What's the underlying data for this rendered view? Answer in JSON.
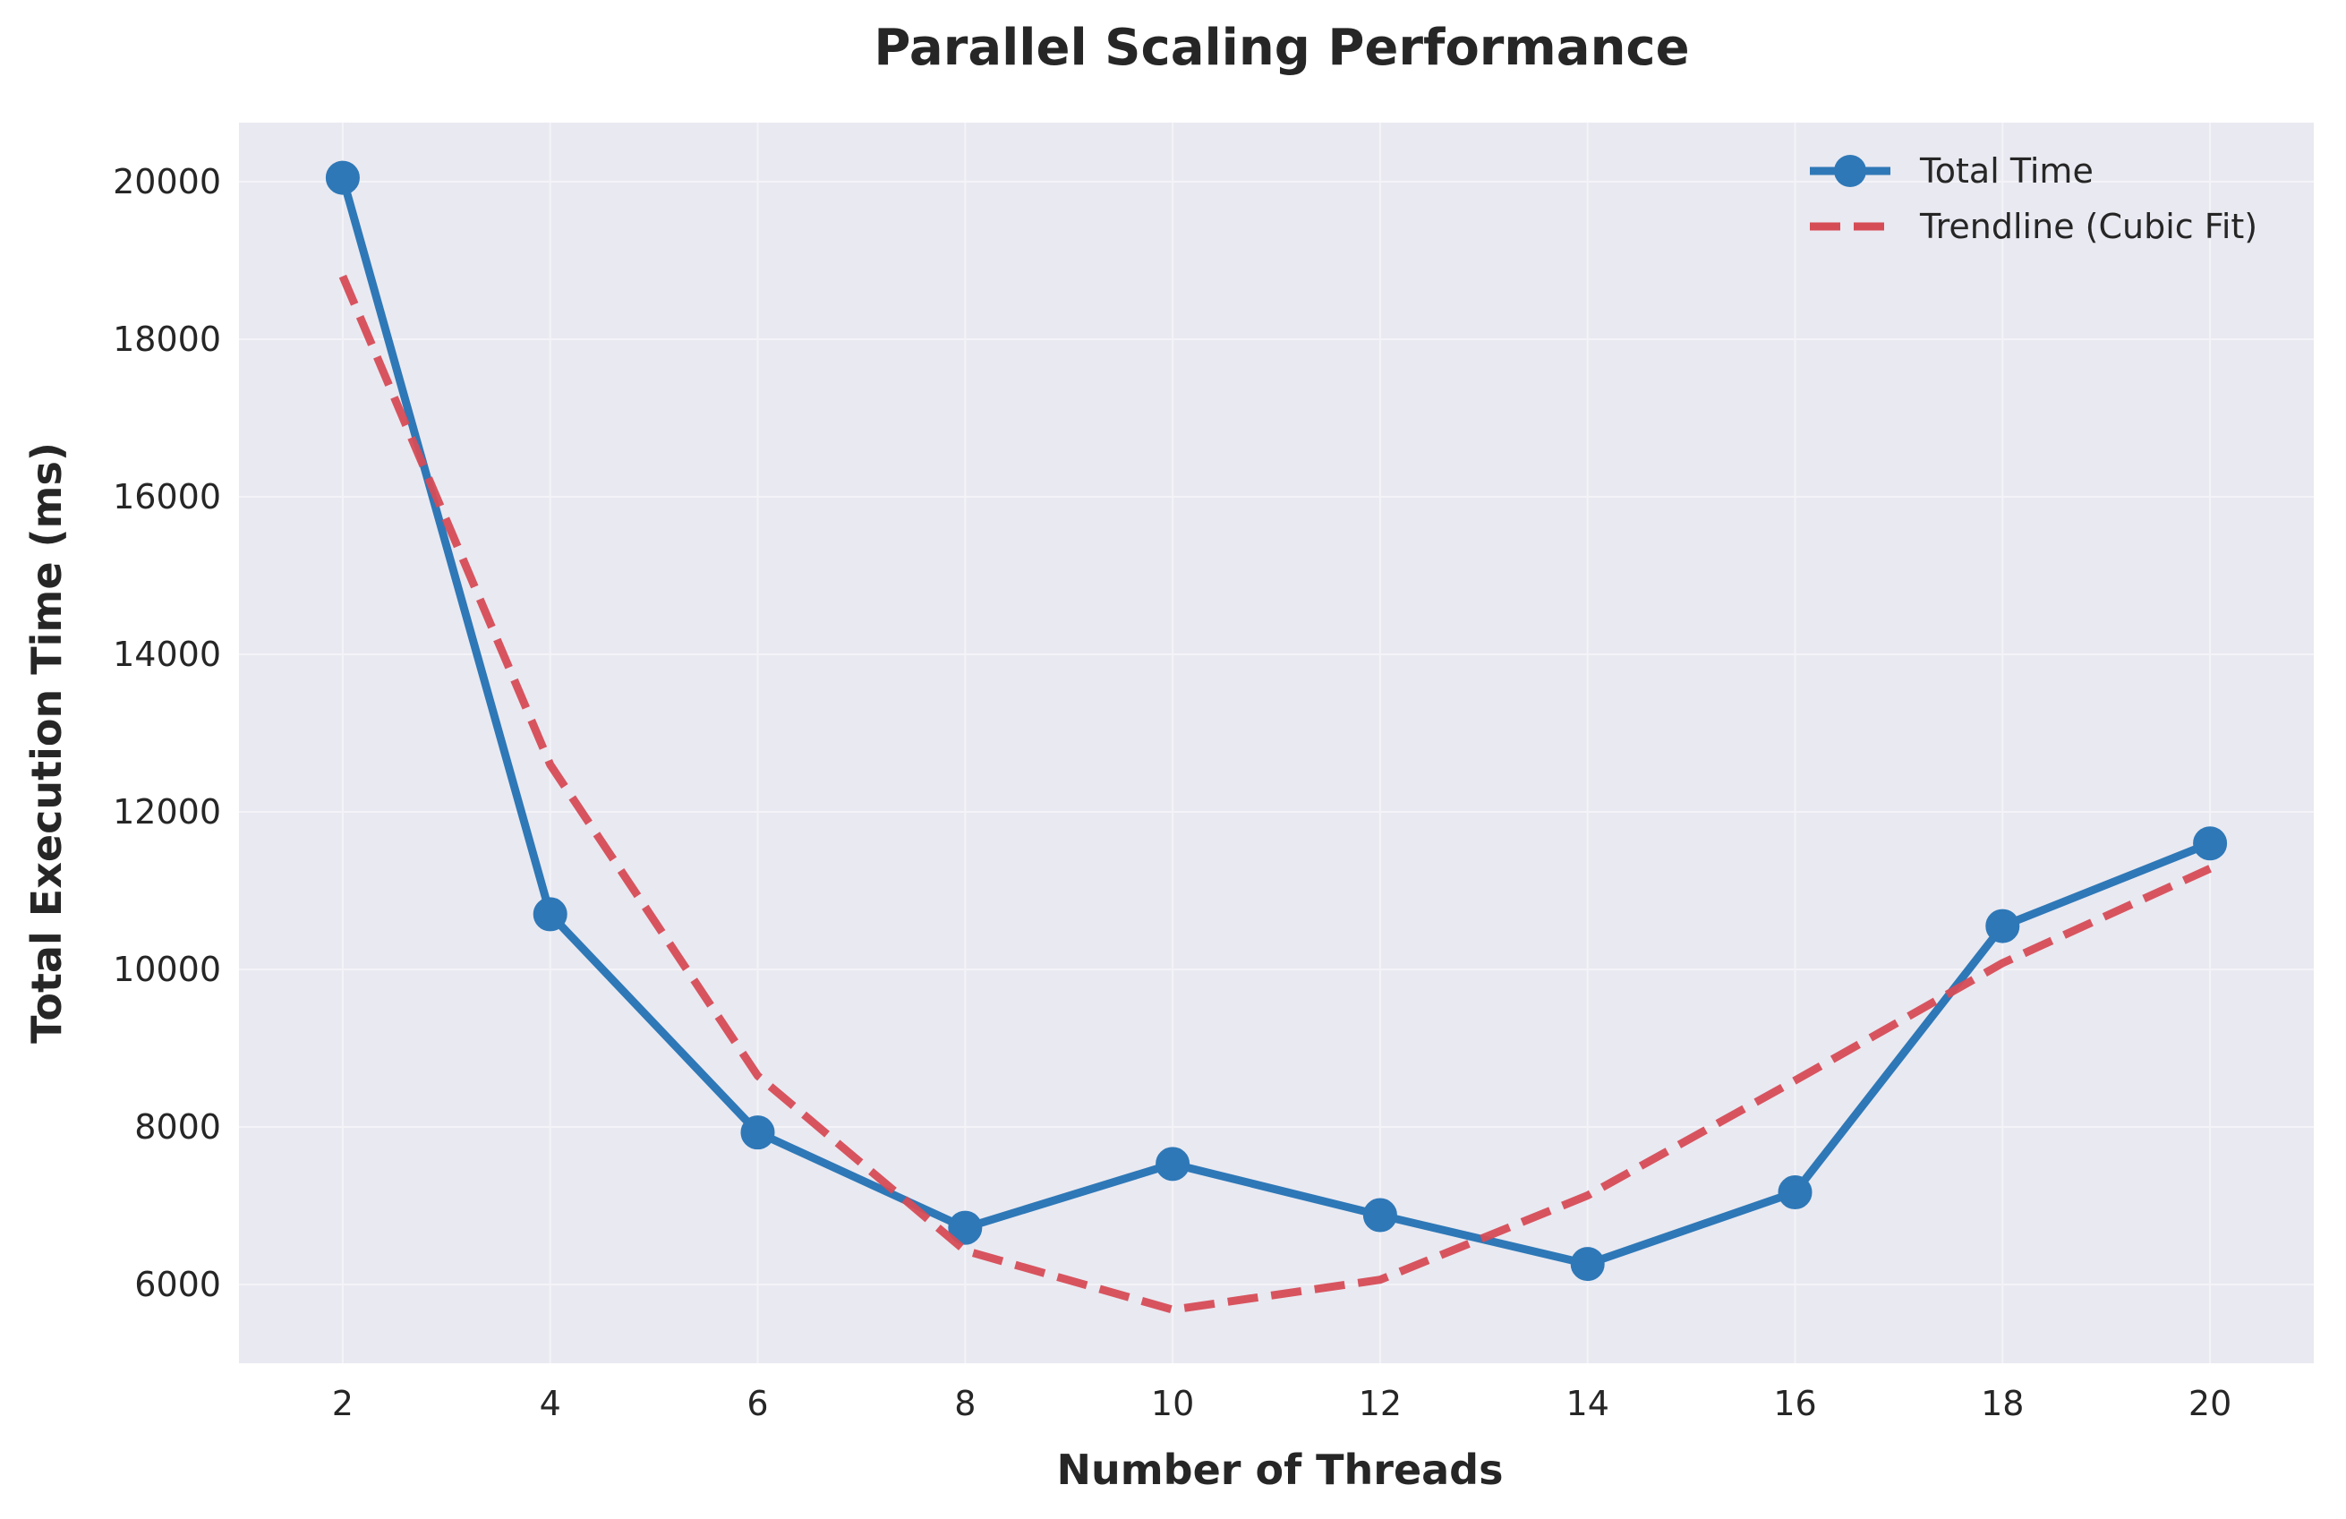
{
  "chart_data": {
    "type": "line",
    "title": "Parallel Scaling Performance",
    "xlabel": "Number of Threads",
    "ylabel": "Total Execution Time (ms)",
    "x": [
      2,
      4,
      6,
      8,
      10,
      12,
      14,
      16,
      18,
      20
    ],
    "xticks": [
      2,
      4,
      6,
      8,
      10,
      12,
      14,
      16,
      18,
      20
    ],
    "yticks": [
      6000,
      8000,
      10000,
      12000,
      14000,
      16000,
      18000,
      20000
    ],
    "xlim": [
      1,
      21
    ],
    "ylim": [
      5000,
      20750
    ],
    "grid": true,
    "legend_position": "top-right",
    "series": [
      {
        "name": "Total Time",
        "style": "solid-with-markers",
        "color": "#2e78b7",
        "values": [
          20050,
          10700,
          7930,
          6720,
          7530,
          6880,
          6260,
          7170,
          10550,
          11600
        ]
      },
      {
        "name": "Trendline (Cubic Fit)",
        "style": "dashed",
        "color": "#d64c56",
        "values": [
          18800,
          12600,
          8650,
          6430,
          5680,
          6060,
          7130,
          8590,
          10080,
          11280
        ]
      }
    ]
  }
}
